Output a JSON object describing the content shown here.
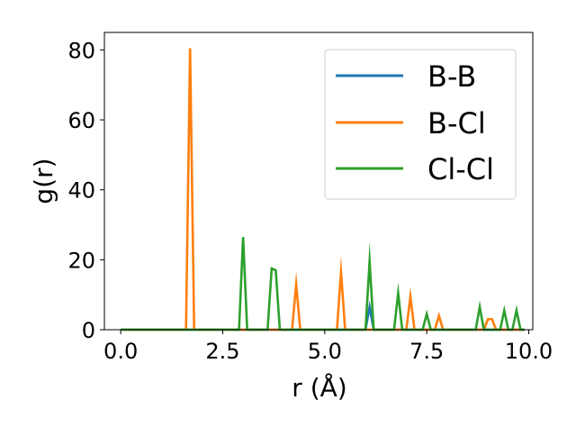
{
  "chart_data": {
    "type": "line",
    "xlabel": "r (Å)",
    "ylabel": "g(r)",
    "xlim": [
      -0.4,
      10.1
    ],
    "ylim": [
      0,
      85
    ],
    "xticks": [
      0.0,
      2.5,
      5.0,
      7.5,
      10.0
    ],
    "xtick_labels": [
      "0.0",
      "2.5",
      "5.0",
      "7.5",
      "10.0"
    ],
    "yticks": [
      0,
      20,
      40,
      60,
      80
    ],
    "ytick_labels": [
      "0",
      "20",
      "40",
      "60",
      "80"
    ],
    "grid": false,
    "legend_position": "top-right",
    "series": [
      {
        "name": "B-B",
        "color": "#1f77b4",
        "x": [
          0.0,
          6.0,
          6.1,
          6.2,
          9.9
        ],
        "y": [
          0,
          0,
          6.5,
          0,
          0
        ]
      },
      {
        "name": "B-Cl",
        "color": "#ff7f0e",
        "x": [
          0.0,
          1.6,
          1.7,
          1.8,
          4.2,
          4.3,
          4.4,
          5.3,
          5.4,
          5.5,
          7.0,
          7.1,
          7.2,
          7.7,
          7.8,
          7.9,
          8.9,
          9.0,
          9.1,
          9.2,
          9.9
        ],
        "y": [
          0,
          0,
          80.5,
          0,
          0,
          13,
          0,
          0,
          16.5,
          0,
          0,
          9.5,
          0,
          0,
          4,
          0,
          0,
          3,
          3,
          0,
          0
        ]
      },
      {
        "name": "Cl-Cl",
        "color": "#2ca02c",
        "x": [
          0.0,
          2.9,
          3.0,
          3.1,
          3.6,
          3.7,
          3.8,
          3.9,
          6.0,
          6.1,
          6.2,
          6.7,
          6.8,
          6.9,
          7.4,
          7.5,
          7.6,
          8.7,
          8.8,
          8.9,
          9.3,
          9.4,
          9.5,
          9.6,
          9.7,
          9.8,
          9.9
        ],
        "y": [
          0,
          0,
          26.5,
          0,
          0,
          17.5,
          17,
          0,
          0,
          19.5,
          0,
          0,
          10.5,
          0,
          0,
          4.5,
          0,
          0,
          6.5,
          0,
          0,
          5.5,
          0,
          0,
          5.5,
          0,
          0
        ]
      }
    ]
  }
}
